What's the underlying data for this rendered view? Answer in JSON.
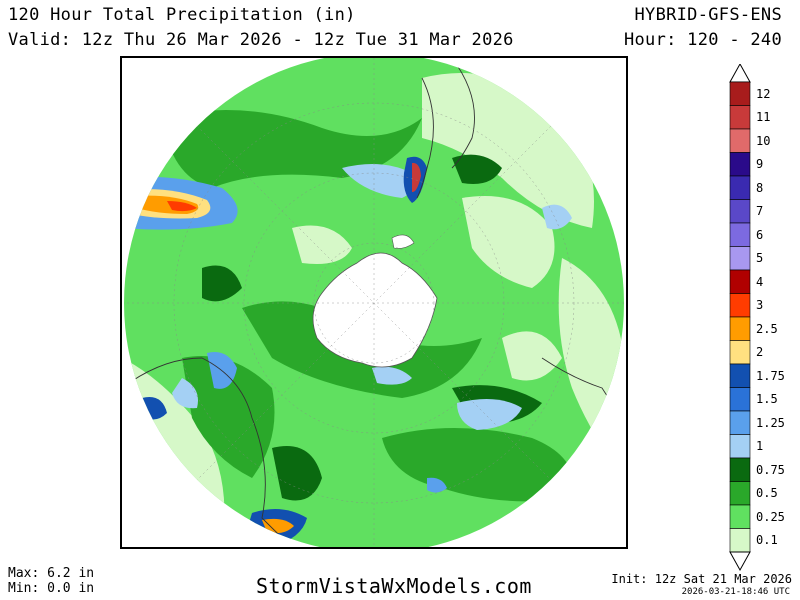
{
  "header": {
    "title": "120 Hour Total Precipitation (in)",
    "valid": "Valid: 12z Thu 26 Mar 2026 - 12z Tue 31 Mar 2026",
    "model": "HYBRID-GFS-ENS",
    "hour": "Hour: 120 - 240"
  },
  "legend": {
    "labels": [
      "12",
      "11",
      "10",
      "9",
      "8",
      "7",
      "6",
      "5",
      "4",
      "3",
      "2.5",
      "2",
      "1.75",
      "1.5",
      "1.25",
      "1",
      "0.75",
      "0.5",
      "0.25",
      "0.1"
    ],
    "colors": [
      "#a81c1c",
      "#c83a3a",
      "#e06a6a",
      "#2a0a8a",
      "#3a2ab0",
      "#5a48c8",
      "#7c6ae0",
      "#a898f0",
      "#b00000",
      "#ff3c00",
      "#ff9c00",
      "#ffe080",
      "#1250b0",
      "#2a72d8",
      "#5aa0ec",
      "#a4d0f4",
      "#0a6a10",
      "#2aa82a",
      "#60e060",
      "#d6f8c8"
    ]
  },
  "map": {
    "projection": "polar stereographic, south pole",
    "colors": {
      "light_green": "#d6f8c8",
      "green": "#60e060",
      "mid_green": "#2aa82a",
      "dark_green": "#0a6a10",
      "light_blue": "#a4d0f4",
      "blue": "#5aa0ec",
      "dark_blue": "#1250b0",
      "orange": "#ff9c00",
      "red_orange": "#ff3c00"
    }
  },
  "footer": {
    "max": "Max: 6.2 in",
    "min": "Min: 0.0 in",
    "site": "StormVistaWxModels.com",
    "init": "Init: 12z Sat 21 Mar 2026",
    "stamp": "2026-03-21-18:46 UTC"
  }
}
